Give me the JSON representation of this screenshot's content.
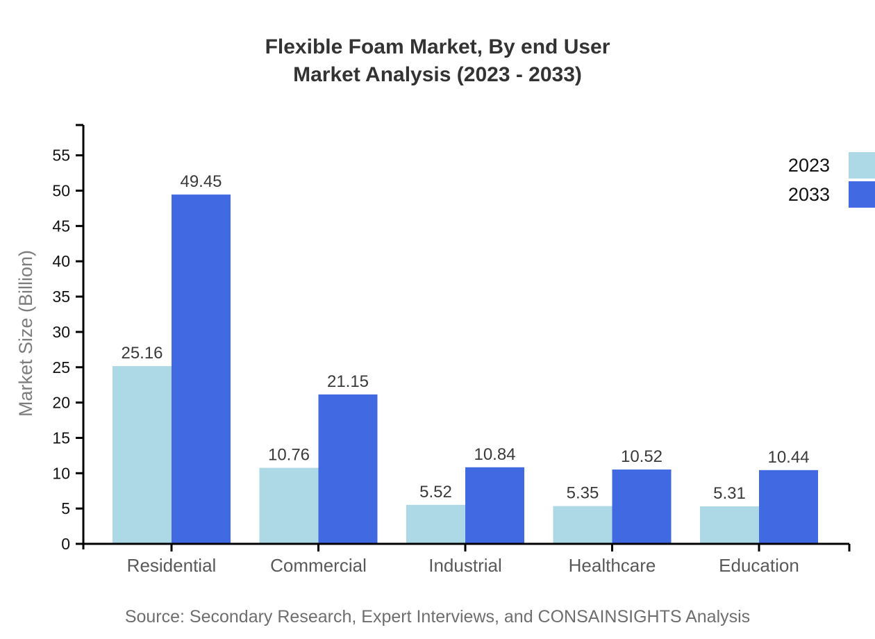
{
  "title": {
    "line1": "Flexible Foam Market, By end User",
    "line2": "Market Analysis (2023 - 2033)"
  },
  "source_note": "Source: Secondary Research, Expert Interviews, and CONSAINSIGHTS Analysis",
  "colors": {
    "series_2023": "#ADD8E6",
    "series_2033": "#4169E1",
    "axis": "#000000",
    "title_text": "#333333",
    "tick_label": "#111111",
    "category_label": "#595959",
    "value_label": "#3a3a3a",
    "muted_text": "#7d7d7d"
  },
  "chart_data": {
    "type": "bar",
    "title": "Flexible Foam Market, By end User Market Analysis (2023 - 2033)",
    "categories": [
      "Residential",
      "Commercial",
      "Industrial",
      "Healthcare",
      "Education"
    ],
    "series": [
      {
        "name": "2023",
        "color": "#ADD8E6",
        "values": [
          25.16,
          10.76,
          5.52,
          5.35,
          5.31
        ]
      },
      {
        "name": "2033",
        "color": "#4169E1",
        "values": [
          49.45,
          21.15,
          10.84,
          10.52,
          10.44
        ]
      }
    ],
    "xlabel": "",
    "ylabel": "Market Size (Billion)",
    "yticks": [
      0,
      5,
      10,
      15,
      20,
      25,
      30,
      35,
      40,
      45,
      50,
      55
    ],
    "ylim": [
      0,
      59
    ],
    "grid": false,
    "legend_position": "top-right",
    "value_labels": true
  }
}
